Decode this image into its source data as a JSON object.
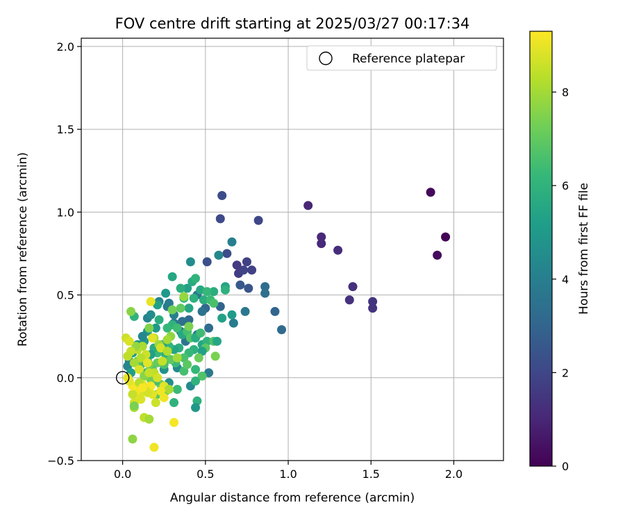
{
  "chart_data": {
    "type": "scatter",
    "title": "FOV centre drift starting at 2025/03/27 00:17:34",
    "xlabel": "Angular distance from reference (arcmin)",
    "ylabel": "Rotation from reference (arcmin)",
    "xlim": [
      -0.25,
      2.3
    ],
    "ylim": [
      -0.5,
      2.05
    ],
    "xticks": [
      "0.0",
      "0.5",
      "1.0",
      "1.5",
      "2.0"
    ],
    "yticks": [
      "−0.5",
      "0.0",
      "0.5",
      "1.0",
      "1.5",
      "2.0"
    ],
    "grid": true,
    "legend": {
      "position": "top-right",
      "entries": [
        "Reference platepar"
      ]
    },
    "colorbar": {
      "label": "Hours from first FF file",
      "range": [
        0,
        9.3
      ],
      "ticks": [
        "0",
        "2",
        "4",
        "6",
        "8"
      ],
      "colormap": "viridis"
    },
    "reference_point": {
      "x": 0.0,
      "y": 0.0
    },
    "points": [
      {
        "x": 1.95,
        "y": 0.85,
        "h": 0.1
      },
      {
        "x": 1.86,
        "y": 1.12,
        "h": 0.2
      },
      {
        "x": 1.9,
        "y": 0.74,
        "h": 0.3
      },
      {
        "x": 1.12,
        "y": 1.04,
        "h": 1.0
      },
      {
        "x": 1.2,
        "y": 0.85,
        "h": 1.1
      },
      {
        "x": 1.2,
        "y": 0.81,
        "h": 1.1
      },
      {
        "x": 1.3,
        "y": 0.77,
        "h": 1.2
      },
      {
        "x": 1.39,
        "y": 0.55,
        "h": 1.3
      },
      {
        "x": 1.37,
        "y": 0.47,
        "h": 1.3
      },
      {
        "x": 1.51,
        "y": 0.46,
        "h": 1.4
      },
      {
        "x": 1.51,
        "y": 0.42,
        "h": 1.4
      },
      {
        "x": 0.82,
        "y": 0.95,
        "h": 2.0
      },
      {
        "x": 0.6,
        "y": 1.1,
        "h": 2.2
      },
      {
        "x": 0.59,
        "y": 0.96,
        "h": 2.1
      },
      {
        "x": 0.69,
        "y": 0.68,
        "h": 1.6
      },
      {
        "x": 0.7,
        "y": 0.63,
        "h": 1.7
      },
      {
        "x": 0.75,
        "y": 0.7,
        "h": 1.8
      },
      {
        "x": 0.73,
        "y": 0.65,
        "h": 1.9
      },
      {
        "x": 0.78,
        "y": 0.65,
        "h": 1.8
      },
      {
        "x": 0.63,
        "y": 0.75,
        "h": 2.2
      },
      {
        "x": 0.51,
        "y": 0.7,
        "h": 2.3
      },
      {
        "x": 0.76,
        "y": 0.54,
        "h": 2.5
      },
      {
        "x": 0.71,
        "y": 0.56,
        "h": 2.6
      },
      {
        "x": 0.92,
        "y": 0.4,
        "h": 3.0
      },
      {
        "x": 0.96,
        "y": 0.29,
        "h": 3.2
      },
      {
        "x": 0.86,
        "y": 0.55,
        "h": 3.3
      },
      {
        "x": 0.86,
        "y": 0.51,
        "h": 3.4
      },
      {
        "x": 0.74,
        "y": 0.4,
        "h": 3.7
      },
      {
        "x": 0.67,
        "y": 0.33,
        "h": 3.9
      },
      {
        "x": 0.66,
        "y": 0.82,
        "h": 4.0
      },
      {
        "x": 0.58,
        "y": 0.74,
        "h": 4.3
      },
      {
        "x": 0.41,
        "y": 0.7,
        "h": 4.5
      },
      {
        "x": 0.59,
        "y": 0.43,
        "h": 3.0
      },
      {
        "x": 0.5,
        "y": 0.42,
        "h": 3.1
      },
      {
        "x": 0.52,
        "y": 0.3,
        "h": 3.3
      },
      {
        "x": 0.48,
        "y": 0.4,
        "h": 3.5
      },
      {
        "x": 0.45,
        "y": 0.5,
        "h": 3.6
      },
      {
        "x": 0.4,
        "y": 0.35,
        "h": 3.2
      },
      {
        "x": 0.36,
        "y": 0.34,
        "h": 3.4
      },
      {
        "x": 0.28,
        "y": 0.45,
        "h": 3.8
      },
      {
        "x": 0.27,
        "y": 0.43,
        "h": 3.9
      },
      {
        "x": 0.31,
        "y": 0.38,
        "h": 4.1
      },
      {
        "x": 0.22,
        "y": 0.46,
        "h": 4.2
      },
      {
        "x": 0.15,
        "y": 0.36,
        "h": 4.2
      },
      {
        "x": 0.17,
        "y": 0.38,
        "h": 4.5
      },
      {
        "x": 0.35,
        "y": 0.28,
        "h": 3.7
      },
      {
        "x": 0.31,
        "y": 0.33,
        "h": 3.8
      },
      {
        "x": 0.38,
        "y": 0.22,
        "h": 3.6
      },
      {
        "x": 0.45,
        "y": 0.26,
        "h": 4.0
      },
      {
        "x": 0.52,
        "y": 0.03,
        "h": 3.8
      },
      {
        "x": 0.41,
        "y": -0.05,
        "h": 4.4
      },
      {
        "x": 0.28,
        "y": -0.03,
        "h": 4.6
      },
      {
        "x": 0.33,
        "y": 0.06,
        "h": 4.4
      },
      {
        "x": 0.25,
        "y": 0.05,
        "h": 4.7
      },
      {
        "x": 0.2,
        "y": 0.3,
        "h": 5.0
      },
      {
        "x": 0.15,
        "y": 0.28,
        "h": 4.8
      },
      {
        "x": 0.13,
        "y": 0.22,
        "h": 5.0
      },
      {
        "x": 0.12,
        "y": 0.25,
        "h": 4.3
      },
      {
        "x": 0.09,
        "y": 0.2,
        "h": 4.9
      },
      {
        "x": 0.06,
        "y": 0.15,
        "h": 5.1
      },
      {
        "x": 0.04,
        "y": 0.1,
        "h": 4.0
      },
      {
        "x": 0.03,
        "y": 0.07,
        "h": 4.2
      },
      {
        "x": 0.05,
        "y": 0.03,
        "h": 5.2
      },
      {
        "x": 0.26,
        "y": 0.51,
        "h": 5.0
      },
      {
        "x": 0.3,
        "y": 0.61,
        "h": 5.5
      },
      {
        "x": 0.39,
        "y": 0.54,
        "h": 5.3
      },
      {
        "x": 0.42,
        "y": 0.58,
        "h": 5.7
      },
      {
        "x": 0.44,
        "y": 0.6,
        "h": 6.0
      },
      {
        "x": 0.47,
        "y": 0.53,
        "h": 5.6
      },
      {
        "x": 0.55,
        "y": 0.52,
        "h": 5.8
      },
      {
        "x": 0.51,
        "y": 0.52,
        "h": 6.2
      },
      {
        "x": 0.62,
        "y": 0.55,
        "h": 5.4
      },
      {
        "x": 0.62,
        "y": 0.53,
        "h": 5.9
      },
      {
        "x": 0.66,
        "y": 0.38,
        "h": 5.1
      },
      {
        "x": 0.6,
        "y": 0.36,
        "h": 5.3
      },
      {
        "x": 0.49,
        "y": 0.47,
        "h": 5.8
      },
      {
        "x": 0.53,
        "y": 0.47,
        "h": 6.3
      },
      {
        "x": 0.55,
        "y": 0.45,
        "h": 6.6
      },
      {
        "x": 0.43,
        "y": 0.48,
        "h": 5.9
      },
      {
        "x": 0.37,
        "y": 0.48,
        "h": 6.1
      },
      {
        "x": 0.35,
        "y": 0.54,
        "h": 5.8
      },
      {
        "x": 0.4,
        "y": 0.42,
        "h": 5.5
      },
      {
        "x": 0.21,
        "y": 0.44,
        "h": 5.3
      },
      {
        "x": 0.22,
        "y": 0.35,
        "h": 5.8
      },
      {
        "x": 0.3,
        "y": 0.32,
        "h": 6.0
      },
      {
        "x": 0.33,
        "y": 0.3,
        "h": 6.4
      },
      {
        "x": 0.27,
        "y": 0.3,
        "h": 6.2
      },
      {
        "x": 0.36,
        "y": 0.26,
        "h": 5.6
      },
      {
        "x": 0.39,
        "y": 0.28,
        "h": 6.5
      },
      {
        "x": 0.41,
        "y": 0.24,
        "h": 6.8
      },
      {
        "x": 0.44,
        "y": 0.24,
        "h": 5.7
      },
      {
        "x": 0.47,
        "y": 0.27,
        "h": 6.4
      },
      {
        "x": 0.48,
        "y": 0.2,
        "h": 5.4
      },
      {
        "x": 0.51,
        "y": 0.22,
        "h": 6.0
      },
      {
        "x": 0.55,
        "y": 0.22,
        "h": 6.7
      },
      {
        "x": 0.57,
        "y": 0.22,
        "h": 5.5
      },
      {
        "x": 0.5,
        "y": 0.18,
        "h": 6.9
      },
      {
        "x": 0.48,
        "y": 0.16,
        "h": 5.3
      },
      {
        "x": 0.43,
        "y": 0.17,
        "h": 5.9
      },
      {
        "x": 0.4,
        "y": 0.15,
        "h": 6.2
      },
      {
        "x": 0.37,
        "y": 0.12,
        "h": 6.6
      },
      {
        "x": 0.34,
        "y": 0.18,
        "h": 5.8
      },
      {
        "x": 0.31,
        "y": 0.17,
        "h": 5.4
      },
      {
        "x": 0.28,
        "y": 0.19,
        "h": 6.1
      },
      {
        "x": 0.26,
        "y": 0.14,
        "h": 5.9
      },
      {
        "x": 0.24,
        "y": 0.2,
        "h": 5.6
      },
      {
        "x": 0.21,
        "y": 0.15,
        "h": 6.3
      },
      {
        "x": 0.19,
        "y": 0.18,
        "h": 5.7
      },
      {
        "x": 0.17,
        "y": 0.14,
        "h": 5.2
      },
      {
        "x": 0.15,
        "y": 0.1,
        "h": 5.5
      },
      {
        "x": 0.13,
        "y": 0.12,
        "h": 6.0
      },
      {
        "x": 0.11,
        "y": 0.08,
        "h": 6.4
      },
      {
        "x": 0.09,
        "y": 0.1,
        "h": 6.8
      },
      {
        "x": 0.46,
        "y": 0.12,
        "h": 7.2
      },
      {
        "x": 0.56,
        "y": 0.13,
        "h": 7.4
      },
      {
        "x": 0.44,
        "y": 0.05,
        "h": 6.2
      },
      {
        "x": 0.48,
        "y": 0.01,
        "h": 6.7
      },
      {
        "x": 0.44,
        "y": -0.02,
        "h": 6.0
      },
      {
        "x": 0.37,
        "y": 0.04,
        "h": 6.5
      },
      {
        "x": 0.39,
        "y": 0.08,
        "h": 6.9
      },
      {
        "x": 0.32,
        "y": 0.09,
        "h": 6.3
      },
      {
        "x": 0.29,
        "y": 0.11,
        "h": 7.0
      },
      {
        "x": 0.25,
        "y": 0.08,
        "h": 6.6
      },
      {
        "x": 0.21,
        "y": 0.09,
        "h": 7.1
      },
      {
        "x": 0.18,
        "y": 0.05,
        "h": 6.8
      },
      {
        "x": 0.16,
        "y": 0.08,
        "h": 7.3
      },
      {
        "x": 0.14,
        "y": 0.03,
        "h": 6.4
      },
      {
        "x": 0.45,
        "y": -0.14,
        "h": 5.9
      },
      {
        "x": 0.44,
        "y": -0.18,
        "h": 4.9
      },
      {
        "x": 0.31,
        "y": -0.15,
        "h": 6.0
      },
      {
        "x": 0.33,
        "y": -0.07,
        "h": 6.3
      },
      {
        "x": 0.26,
        "y": -0.08,
        "h": 6.7
      },
      {
        "x": 0.23,
        "y": -0.04,
        "h": 7.0
      },
      {
        "x": 0.2,
        "y": -0.02,
        "h": 6.5
      },
      {
        "x": 0.21,
        "y": -0.1,
        "h": 6.9
      },
      {
        "x": 0.17,
        "y": -0.01,
        "h": 7.2
      },
      {
        "x": 0.07,
        "y": 0.37,
        "h": 6.0
      },
      {
        "x": 0.05,
        "y": 0.4,
        "h": 7.6
      },
      {
        "x": 0.16,
        "y": 0.3,
        "h": 7.5
      },
      {
        "x": 0.3,
        "y": 0.41,
        "h": 7.3
      },
      {
        "x": 0.35,
        "y": 0.42,
        "h": 7.0
      },
      {
        "x": 0.37,
        "y": 0.49,
        "h": 7.8
      },
      {
        "x": 0.4,
        "y": 0.31,
        "h": 7.4
      },
      {
        "x": 0.29,
        "y": 0.25,
        "h": 7.7
      },
      {
        "x": 0.27,
        "y": 0.23,
        "h": 8.0
      },
      {
        "x": 0.22,
        "y": 0.2,
        "h": 7.9
      },
      {
        "x": 0.19,
        "y": 0.24,
        "h": 8.2
      },
      {
        "x": 0.12,
        "y": 0.19,
        "h": 8.1
      },
      {
        "x": 0.09,
        "y": 0.17,
        "h": 8.3
      },
      {
        "x": 0.08,
        "y": 0.19,
        "h": 7.8
      },
      {
        "x": 0.05,
        "y": 0.16,
        "h": 8.5
      },
      {
        "x": 0.03,
        "y": 0.13,
        "h": 8.4
      },
      {
        "x": 0.02,
        "y": 0.24,
        "h": 8.6
      },
      {
        "x": 0.04,
        "y": 0.22,
        "h": 8.8
      },
      {
        "x": 0.17,
        "y": 0.46,
        "h": 9.0
      },
      {
        "x": 0.18,
        "y": 0.24,
        "h": 8.9
      },
      {
        "x": 0.23,
        "y": 0.18,
        "h": 8.7
      },
      {
        "x": 0.27,
        "y": 0.16,
        "h": 8.2
      },
      {
        "x": 0.33,
        "y": 0.12,
        "h": 8.0
      },
      {
        "x": 0.24,
        "y": 0.1,
        "h": 8.5
      },
      {
        "x": 0.14,
        "y": 0.14,
        "h": 8.6
      },
      {
        "x": 0.11,
        "y": 0.12,
        "h": 8.3
      },
      {
        "x": 0.07,
        "y": 0.09,
        "h": 8.0
      },
      {
        "x": 0.1,
        "y": 0.05,
        "h": 8.8
      },
      {
        "x": 0.13,
        "y": 0.01,
        "h": 7.6
      },
      {
        "x": 0.15,
        "y": 0.09,
        "h": 8.9
      },
      {
        "x": 0.19,
        "y": 0.03,
        "h": 8.4
      },
      {
        "x": 0.21,
        "y": 0.0,
        "h": 8.7
      },
      {
        "x": 0.25,
        "y": -0.05,
        "h": 8.9
      },
      {
        "x": 0.28,
        "y": -0.07,
        "h": 8.1
      },
      {
        "x": 0.23,
        "y": -0.08,
        "h": 9.1
      },
      {
        "x": 0.17,
        "y": -0.05,
        "h": 9.2
      },
      {
        "x": 0.14,
        "y": -0.08,
        "h": 8.6
      },
      {
        "x": 0.12,
        "y": -0.04,
        "h": 9.0
      },
      {
        "x": 0.1,
        "y": -0.11,
        "h": 8.8
      },
      {
        "x": 0.08,
        "y": -0.08,
        "h": 9.1
      },
      {
        "x": 0.06,
        "y": -0.1,
        "h": 8.5
      },
      {
        "x": 0.06,
        "y": -0.05,
        "h": 9.2
      },
      {
        "x": 0.04,
        "y": -0.02,
        "h": 8.9
      },
      {
        "x": 0.03,
        "y": 0.0,
        "h": 9.0
      },
      {
        "x": 0.07,
        "y": -0.15,
        "h": 8.7
      },
      {
        "x": 0.07,
        "y": -0.18,
        "h": 8.2
      },
      {
        "x": 0.07,
        "y": -0.17,
        "h": 7.4
      },
      {
        "x": 0.11,
        "y": -0.13,
        "h": 8.8
      },
      {
        "x": 0.13,
        "y": -0.24,
        "h": 8.4
      },
      {
        "x": 0.16,
        "y": -0.25,
        "h": 8.0
      },
      {
        "x": 0.18,
        "y": -0.1,
        "h": 8.9
      },
      {
        "x": 0.2,
        "y": -0.15,
        "h": 8.6
      },
      {
        "x": 0.25,
        "y": -0.12,
        "h": 9.1
      },
      {
        "x": 0.31,
        "y": -0.27,
        "h": 9.2
      },
      {
        "x": 0.19,
        "y": -0.42,
        "h": 9.1
      },
      {
        "x": 0.06,
        "y": -0.37,
        "h": 7.7
      },
      {
        "x": 0.1,
        "y": -0.03,
        "h": 8.3
      },
      {
        "x": 0.15,
        "y": -0.09,
        "h": 8.7
      },
      {
        "x": 0.12,
        "y": -0.06,
        "h": 9.2
      },
      {
        "x": 0.16,
        "y": 0.03,
        "h": 8.5
      }
    ]
  }
}
